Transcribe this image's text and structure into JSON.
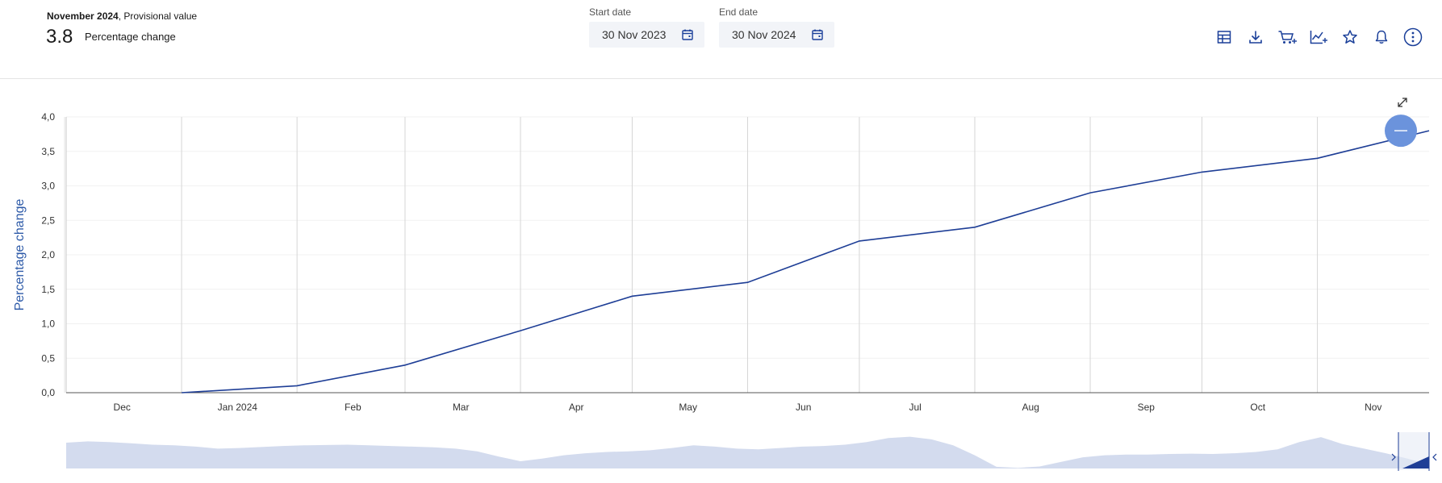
{
  "header": {
    "period_bold": "November 2024",
    "period_rest": ", Provisional value",
    "value": "3.8",
    "metric": "Percentage change"
  },
  "dates": {
    "start_label": "Start date",
    "start_value": "30 Nov 2023",
    "end_label": "End date",
    "end_value": "30 Nov 2024"
  },
  "toolbar": {
    "icons": [
      "table-icon",
      "download-icon",
      "cart-add-icon",
      "chart-add-icon",
      "star-icon",
      "bell-icon",
      "more-options-icon"
    ]
  },
  "colors": {
    "accent": "#1a3f99",
    "line": "#1e3e96",
    "knob": "#6b93dc",
    "navigator_fill": "#d3dbee"
  },
  "chart_data": {
    "type": "line",
    "title": "",
    "xlabel": "",
    "ylabel": "Percentage change",
    "x_range": [
      "2023-11-30",
      "2024-11-30"
    ],
    "ylim": [
      0.0,
      4.0
    ],
    "yticks": [
      "0,0",
      "0,5",
      "1,0",
      "1,5",
      "2,0",
      "2,5",
      "3,0",
      "3,5",
      "4,0"
    ],
    "xticks": [
      {
        "label": "Dec",
        "date": "2023-12-15"
      },
      {
        "label": "Jan 2024",
        "date": "2024-01-15"
      },
      {
        "label": "Feb",
        "date": "2024-02-15"
      },
      {
        "label": "Mar",
        "date": "2024-03-15"
      },
      {
        "label": "Apr",
        "date": "2024-04-15"
      },
      {
        "label": "May",
        "date": "2024-05-15"
      },
      {
        "label": "Jun",
        "date": "2024-06-15"
      },
      {
        "label": "Jul",
        "date": "2024-07-15"
      },
      {
        "label": "Aug",
        "date": "2024-08-15"
      },
      {
        "label": "Sep",
        "date": "2024-09-15"
      },
      {
        "label": "Oct",
        "date": "2024-10-15"
      },
      {
        "label": "Nov",
        "date": "2024-11-15"
      }
    ],
    "grid": {
      "vertical": true,
      "horizontal": true
    },
    "series": [
      {
        "points": [
          {
            "x": "2023-12-31",
            "y": 0.0
          },
          {
            "x": "2024-01-31",
            "y": 0.1
          },
          {
            "x": "2024-02-29",
            "y": 0.4
          },
          {
            "x": "2024-03-31",
            "y": 0.9
          },
          {
            "x": "2024-04-30",
            "y": 1.4
          },
          {
            "x": "2024-05-31",
            "y": 1.6
          },
          {
            "x": "2024-06-30",
            "y": 2.2
          },
          {
            "x": "2024-07-31",
            "y": 2.4
          },
          {
            "x": "2024-08-31",
            "y": 2.9
          },
          {
            "x": "2024-09-30",
            "y": 3.2
          },
          {
            "x": "2024-10-31",
            "y": 3.4
          },
          {
            "x": "2024-11-30",
            "y": 3.8
          }
        ]
      }
    ],
    "navigator_profile": [
      0.78,
      0.82,
      0.8,
      0.76,
      0.72,
      0.7,
      0.66,
      0.6,
      0.62,
      0.65,
      0.68,
      0.7,
      0.71,
      0.72,
      0.7,
      0.68,
      0.66,
      0.64,
      0.6,
      0.52,
      0.36,
      0.22,
      0.3,
      0.4,
      0.46,
      0.5,
      0.52,
      0.55,
      0.62,
      0.7,
      0.66,
      0.6,
      0.58,
      0.62,
      0.66,
      0.68,
      0.72,
      0.8,
      0.92,
      0.96,
      0.88,
      0.7,
      0.4,
      0.05,
      0.02,
      0.06,
      0.2,
      0.34,
      0.4,
      0.42,
      0.42,
      0.44,
      0.45,
      0.44,
      0.46,
      0.5,
      0.58,
      0.8,
      0.95,
      0.74,
      0.6,
      0.46,
      0.3,
      0.12
    ]
  }
}
